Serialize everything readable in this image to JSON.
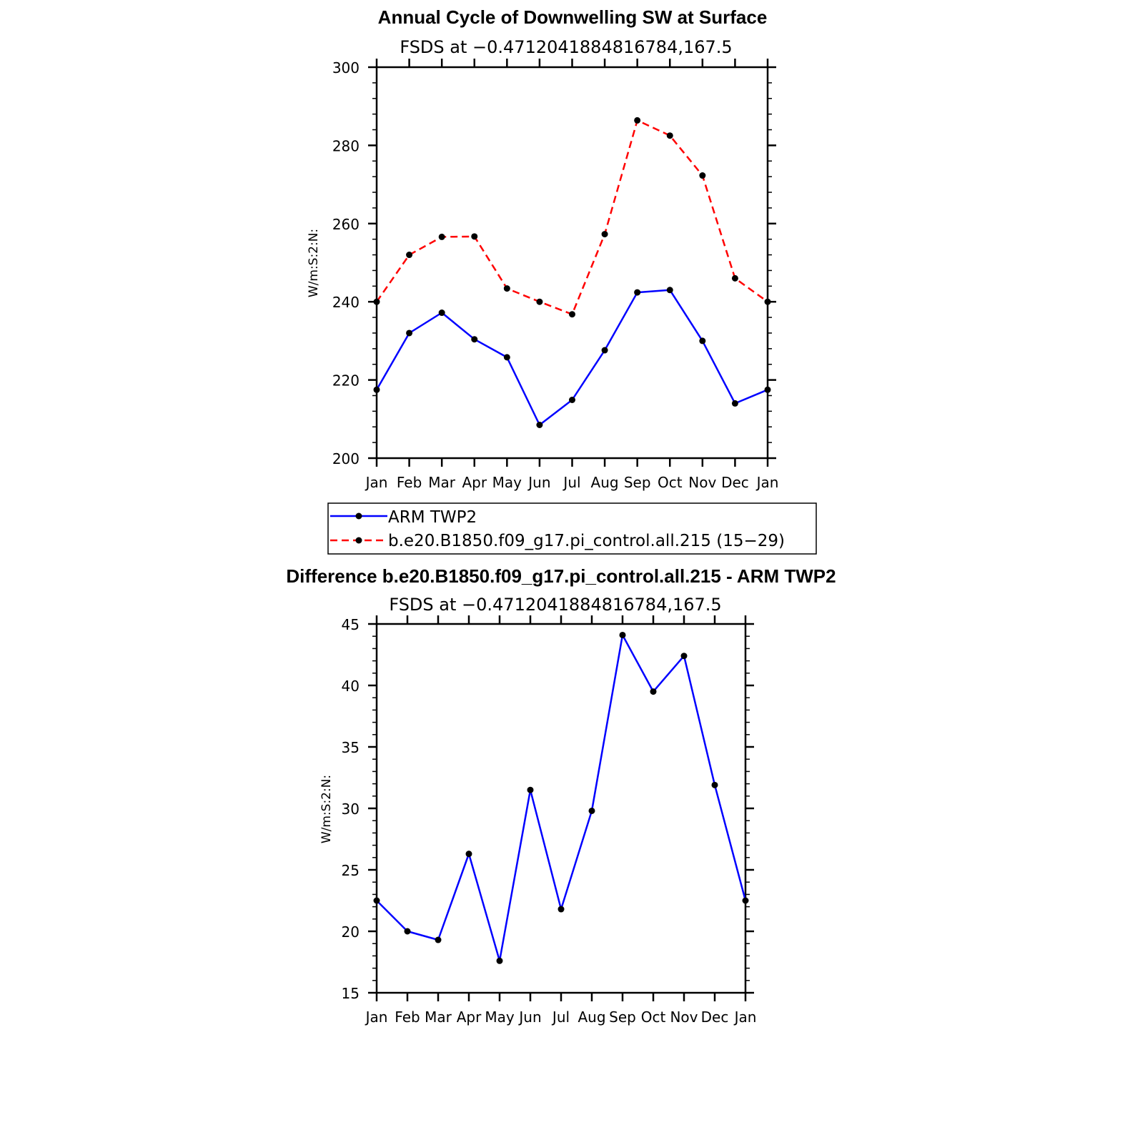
{
  "chart_data": [
    {
      "type": "line",
      "title": "Annual Cycle of Downwelling SW at Surface",
      "subtitle": "FSDS at −0.4712041884816784,167.5",
      "xlabel": "",
      "ylabel": "W/m:S:2:N:",
      "categories": [
        "Jan",
        "Feb",
        "Mar",
        "Apr",
        "May",
        "Jun",
        "Jul",
        "Aug",
        "Sep",
        "Oct",
        "Nov",
        "Dec",
        "Jan"
      ],
      "ylim": [
        200,
        300
      ],
      "yticks": [
        200,
        220,
        240,
        260,
        280,
        300
      ],
      "grid": false,
      "legend_position": "bottom",
      "series": [
        {
          "name": "ARM TWP2",
          "color": "#0000ff",
          "style": "solid",
          "values": [
            217.5,
            232.0,
            237.2,
            230.4,
            225.8,
            208.5,
            214.9,
            227.6,
            242.4,
            243.0,
            230.0,
            214.0,
            217.5
          ]
        },
        {
          "name": "b.e20.B1850.f09_g17.pi_control.all.215 (15−29)",
          "color": "#ff0000",
          "style": "dashed",
          "values": [
            240.0,
            252.0,
            256.6,
            256.7,
            243.4,
            240.0,
            236.8,
            257.3,
            286.4,
            282.5,
            272.3,
            246.0,
            240.0
          ]
        }
      ]
    },
    {
      "type": "line",
      "title": "Difference b.e20.B1850.f09_g17.pi_control.all.215 - ARM TWP2",
      "subtitle": "FSDS at −0.4712041884816784,167.5",
      "xlabel": "",
      "ylabel": "W/m:S:2:N:",
      "categories": [
        "Jan",
        "Feb",
        "Mar",
        "Apr",
        "May",
        "Jun",
        "Jul",
        "Aug",
        "Sep",
        "Oct",
        "Nov",
        "Dec",
        "Jan"
      ],
      "ylim": [
        15,
        45
      ],
      "yticks": [
        15,
        20,
        25,
        30,
        35,
        40,
        45
      ],
      "grid": false,
      "series": [
        {
          "color": "#0000ff",
          "style": "solid",
          "values": [
            22.5,
            20.0,
            19.3,
            26.3,
            17.6,
            31.5,
            21.8,
            29.8,
            44.1,
            39.5,
            42.4,
            31.9,
            22.5
          ]
        }
      ]
    }
  ]
}
